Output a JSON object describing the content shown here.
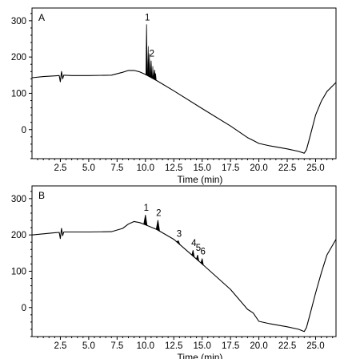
{
  "chart_data": [
    {
      "type": "line",
      "panel_label": "A",
      "xlabel": "Time (min)",
      "ylabel": "",
      "xlim": [
        0,
        26.8
      ],
      "ylim": [
        -80,
        335
      ],
      "x_ticks": [
        2.5,
        5.0,
        7.5,
        10.0,
        12.5,
        15.0,
        17.5,
        20.0,
        22.5,
        25.0
      ],
      "x_tick_labels": [
        "2.5",
        "5.0",
        "7.5",
        "10.0",
        "12.5",
        "15.0",
        "17.5",
        "20.0",
        "22.5",
        "25.0"
      ],
      "y_ticks": [
        0,
        100,
        200,
        300
      ],
      "y_tick_labels": [
        "0",
        "100",
        "200",
        "300"
      ],
      "trace": {
        "x": [
          0.0,
          1.0,
          2.0,
          2.4,
          2.5,
          2.6,
          2.7,
          2.8,
          3.5,
          5.0,
          7.0,
          8.0,
          8.5,
          9.0,
          9.5,
          10.0,
          11.0,
          12.5,
          15.0,
          17.5,
          19.0,
          19.5,
          20.0,
          21.0,
          22.5,
          23.5,
          24.0,
          24.2,
          24.5,
          25.0,
          25.5,
          26.0,
          26.8
        ],
        "y": [
          143,
          146,
          148,
          149,
          132,
          160,
          140,
          150,
          149,
          149,
          150,
          158,
          163,
          163,
          159,
          152,
          135,
          107,
          58,
          10,
          -22,
          -30,
          -38,
          -45,
          -53,
          -60,
          -65,
          -55,
          -20,
          40,
          78,
          105,
          130
        ]
      },
      "peaks": [
        {
          "label": "1",
          "x": 10.1,
          "y": 290,
          "width": 0.12
        },
        {
          "label": "2",
          "x": 10.5,
          "y": 190,
          "width": 0.15
        },
        {
          "label": "",
          "x": 10.8,
          "y": 165,
          "width": 0.2
        }
      ]
    },
    {
      "type": "line",
      "panel_label": "B",
      "xlabel": "Time (min)",
      "ylabel": "",
      "xlim": [
        0,
        26.8
      ],
      "ylim": [
        -80,
        335
      ],
      "x_ticks": [
        2.5,
        5.0,
        7.5,
        10.0,
        12.5,
        15.0,
        17.5,
        20.0,
        22.5,
        25.0
      ],
      "x_tick_labels": [
        "2.5",
        "5.0",
        "7.5",
        "10.0",
        "12.5",
        "15.0",
        "17.5",
        "20.0",
        "22.5",
        "25.0"
      ],
      "y_ticks": [
        0,
        100,
        200,
        300
      ],
      "y_tick_labels": [
        "0",
        "100",
        "200",
        "300"
      ],
      "trace": {
        "x": [
          0.0,
          1.0,
          2.0,
          2.4,
          2.5,
          2.6,
          2.7,
          2.8,
          3.5,
          5.0,
          7.0,
          8.0,
          8.5,
          9.0,
          9.5,
          10.0,
          11.0,
          12.5,
          15.0,
          17.5,
          19.0,
          19.5,
          20.0,
          21.0,
          22.5,
          23.5,
          24.0,
          24.2,
          24.5,
          25.0,
          25.5,
          26.0,
          26.8
        ],
        "y": [
          200,
          203,
          206,
          207,
          190,
          218,
          198,
          208,
          208,
          208,
          209,
          218,
          230,
          237,
          234,
          228,
          215,
          188,
          120,
          50,
          -5,
          -15,
          -38,
          -45,
          -53,
          -60,
          -66,
          -55,
          -20,
          40,
          95,
          145,
          188
        ]
      },
      "peaks": [
        {
          "label": "1",
          "x": 10.0,
          "y": 255,
          "width": 0.3
        },
        {
          "label": "2",
          "x": 11.1,
          "y": 241,
          "width": 0.3
        },
        {
          "label": "3",
          "x": 12.9,
          "y": 184,
          "width": 0.3
        },
        {
          "label": "4",
          "x": 14.2,
          "y": 158,
          "width": 0.22
        },
        {
          "label": "5",
          "x": 14.6,
          "y": 145,
          "width": 0.22
        },
        {
          "label": "6",
          "x": 15.0,
          "y": 135,
          "width": 0.22
        }
      ]
    }
  ]
}
